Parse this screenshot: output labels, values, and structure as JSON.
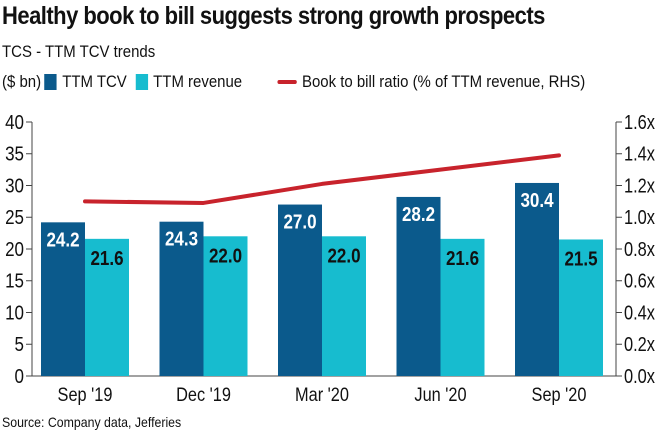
{
  "title": "Healthy book to bill suggests strong growth prospects",
  "subtitle": "TCS - TTM TCV trends",
  "legend": {
    "unit": "($ bn)",
    "tcv": "TTM TCV",
    "revenue": "TTM revenue",
    "ratio": "Book to bill ratio (% of TTM revenue, RHS)"
  },
  "source": "Source: Company data, Jefferies",
  "colors": {
    "tcv": "#0b5a8c",
    "revenue": "#17bccf",
    "ratio": "#c8232c",
    "axis": "#444444"
  },
  "chart_data": {
    "type": "bar",
    "title": "Healthy book to bill suggests strong growth prospects",
    "subtitle": "TCS - TTM TCV trends",
    "xlabel": "",
    "ylabel": "($ bn)",
    "y2label": "Book to bill ratio (% of TTM revenue, RHS)",
    "categories": [
      "Sep '19",
      "Dec '19",
      "Mar '20",
      "Jun '20",
      "Sep '20"
    ],
    "series": [
      {
        "name": "TTM TCV",
        "type": "bar",
        "axis": "left",
        "values": [
          24.2,
          24.3,
          27.0,
          28.2,
          30.4
        ],
        "labels": [
          "24.2",
          "24.3",
          "27.0",
          "28.2",
          "30.4"
        ]
      },
      {
        "name": "TTM revenue",
        "type": "bar",
        "axis": "left",
        "values": [
          21.6,
          22.0,
          22.0,
          21.6,
          21.5
        ],
        "labels": [
          "21.6",
          "22.0",
          "22.0",
          "21.6",
          "21.5"
        ]
      },
      {
        "name": "Book to bill ratio (% of TTM revenue, RHS)",
        "type": "line",
        "axis": "right",
        "values": [
          1.1,
          1.09,
          1.21,
          1.3,
          1.39
        ]
      }
    ],
    "ylim": [
      0,
      40
    ],
    "yticks": [
      0,
      5,
      10,
      15,
      20,
      25,
      30,
      35,
      40
    ],
    "ytick_labels": [
      "0",
      "5",
      "10",
      "15",
      "20",
      "25",
      "30",
      "35",
      "40"
    ],
    "y2lim": [
      0,
      1.6
    ],
    "y2ticks": [
      0,
      0.2,
      0.4,
      0.6,
      0.8,
      1.0,
      1.2,
      1.4,
      1.6
    ],
    "y2tick_labels": [
      "0.0x",
      "0.2x",
      "0.4x",
      "0.6x",
      "0.8x",
      "1.0x",
      "1.2x",
      "1.4x",
      "1.6x"
    ],
    "grid": false,
    "legend_position": "top-left"
  }
}
